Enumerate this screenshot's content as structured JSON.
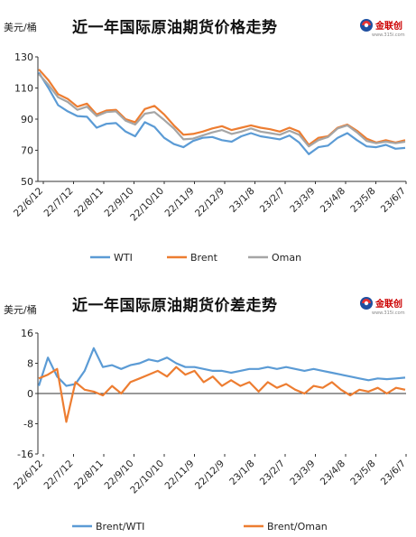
{
  "logo": {
    "name": "金联创",
    "url": "www.315i.com"
  },
  "chart_data": [
    {
      "type": "line",
      "title": "近一年国际原油期货价格走势",
      "ylabel": "美元/桶",
      "ylim": [
        50,
        130
      ],
      "yticks": [
        50,
        70,
        90,
        110,
        130
      ],
      "xticklabels": [
        "22/6/12",
        "22/7/12",
        "22/8/11",
        "22/9/10",
        "22/10/10",
        "22/11/9",
        "22/12/9",
        "23/1/8",
        "23/2/7",
        "23/3/9",
        "23/4/8",
        "23/5/8",
        "23/6/7"
      ],
      "legend": "bottom",
      "grid": false,
      "colors": {
        "WTI": "#5b9bd5",
        "Brent": "#ed7d31",
        "Oman": "#a5a5a5"
      },
      "series": [
        {
          "name": "WTI",
          "values": [
            120.0,
            110.0,
            99.0,
            95.0,
            92.0,
            91.5,
            84.5,
            87.0,
            87.5,
            82.0,
            79.0,
            88.0,
            85.0,
            78.0,
            74.0,
            72.0,
            76.0,
            78.0,
            78.5,
            76.5,
            75.5,
            79.0,
            81.0,
            79.0,
            78.0,
            77.0,
            79.5,
            75.0,
            67.5,
            72.0,
            73.0,
            78.0,
            81.0,
            76.5,
            72.5,
            72.0,
            73.5,
            71.0,
            71.5
          ]
        },
        {
          "name": "Brent",
          "values": [
            122.0,
            115.0,
            106.0,
            103.0,
            98.0,
            100.0,
            93.0,
            95.5,
            96.0,
            90.0,
            88.0,
            96.5,
            98.5,
            93.0,
            86.0,
            80.0,
            80.5,
            82.0,
            84.0,
            85.5,
            83.0,
            84.5,
            86.0,
            84.5,
            83.5,
            82.0,
            84.5,
            82.0,
            73.5,
            78.0,
            79.0,
            84.5,
            86.5,
            82.5,
            77.5,
            75.0,
            76.5,
            75.0,
            76.5
          ]
        },
        {
          "name": "Oman",
          "values": [
            119.0,
            112.0,
            104.0,
            101.0,
            96.0,
            98.0,
            92.0,
            94.5,
            95.0,
            89.0,
            86.5,
            93.5,
            94.5,
            89.5,
            84.0,
            77.0,
            77.5,
            79.5,
            81.5,
            83.0,
            80.5,
            82.0,
            84.0,
            82.0,
            81.0,
            80.0,
            82.5,
            80.0,
            72.5,
            76.5,
            78.5,
            84.0,
            86.0,
            81.5,
            76.0,
            74.5,
            75.5,
            74.5,
            75.5
          ]
        }
      ]
    },
    {
      "type": "line",
      "title": "近一年国际原油期货价差走势",
      "ylabel": "美元/桶",
      "ylim": [
        -16,
        16
      ],
      "yticks": [
        -16,
        -8,
        0,
        8,
        16
      ],
      "xticklabels": [
        "22/6/12",
        "22/7/12",
        "22/8/11",
        "22/9/10",
        "22/10/10",
        "22/11/9",
        "22/12/9",
        "23/1/8",
        "23/2/7",
        "23/3/9",
        "23/4/8",
        "23/5/8",
        "23/6/7"
      ],
      "legend": "bottom",
      "grid": false,
      "colors": {
        "Brent/WTI": "#5b9bd5",
        "Brent/Oman": "#ed7d31"
      },
      "series": [
        {
          "name": "Brent/WTI",
          "values": [
            2.0,
            9.5,
            4.5,
            2.0,
            2.5,
            6.0,
            12.0,
            7.0,
            7.5,
            6.5,
            7.5,
            8.0,
            9.0,
            8.5,
            9.5,
            8.0,
            7.0,
            7.0,
            6.5,
            6.0,
            6.0,
            5.5,
            6.0,
            6.5,
            6.5,
            7.0,
            6.5,
            7.0,
            6.5,
            6.0,
            6.5,
            6.0,
            5.5,
            5.0,
            4.5,
            4.0,
            3.5,
            4.0,
            3.8,
            4.0,
            4.2
          ]
        },
        {
          "name": "Brent/Oman",
          "values": [
            4.0,
            5.0,
            6.5,
            -7.5,
            3.0,
            1.0,
            0.5,
            -0.5,
            2.0,
            0.0,
            3.0,
            4.0,
            5.0,
            6.0,
            4.5,
            7.0,
            5.0,
            6.0,
            3.0,
            4.5,
            2.0,
            3.5,
            2.0,
            3.0,
            0.5,
            3.0,
            1.5,
            2.5,
            1.0,
            0.0,
            2.0,
            1.5,
            3.0,
            1.0,
            -0.5,
            1.0,
            0.5,
            1.5,
            0.0,
            1.5,
            1.0
          ]
        }
      ]
    }
  ]
}
